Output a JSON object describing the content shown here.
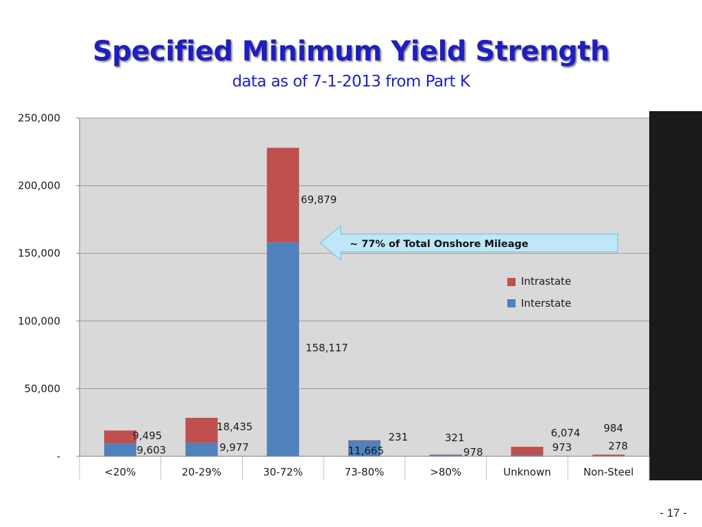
{
  "slide": {
    "title": "Specified Minimum Yield Strength",
    "subtitle": "data as of 7-1-2013 from Part K",
    "page_number": "- 17 -"
  },
  "colors": {
    "intrastate": "#c0504d",
    "interstate": "#4f81bd",
    "title": "#1f1fbf",
    "plot_bg": "#d9d9d9",
    "frame_bg": "#262626",
    "callout_fill": "#bfe7f7"
  },
  "chart_data": {
    "type": "bar",
    "stacked": true,
    "categories": [
      "<20%",
      "20-29%",
      "30-72%",
      "73-80%",
      ">80%",
      "Unknown",
      "Non-Steel"
    ],
    "series": [
      {
        "name": "Interstate",
        "values": [
          9603,
          9977,
          158117,
          11665,
          978,
          973,
          278
        ]
      },
      {
        "name": "Intrastate",
        "values": [
          9495,
          18435,
          69879,
          231,
          321,
          6074,
          984
        ]
      }
    ],
    "data_labels": {
      "Interstate": [
        "9,603",
        "9,977",
        "158,117",
        "11,665",
        "978",
        "973",
        "278"
      ],
      "Intrastate": [
        "9,495",
        "18,435",
        "69,879",
        "231",
        "321",
        "6,074",
        "984"
      ]
    },
    "ylim": [
      0,
      250000
    ],
    "yticks": [
      0,
      50000,
      100000,
      150000,
      200000,
      250000
    ],
    "ytick_labels": [
      "-",
      "50,000",
      "100,000",
      "150,000",
      "200,000",
      "250,000"
    ],
    "legend": [
      "Intrastate",
      "Interstate"
    ],
    "legend_position": "right",
    "grid": true,
    "annotation": "~ 77% of Total Onshore Mileage"
  }
}
